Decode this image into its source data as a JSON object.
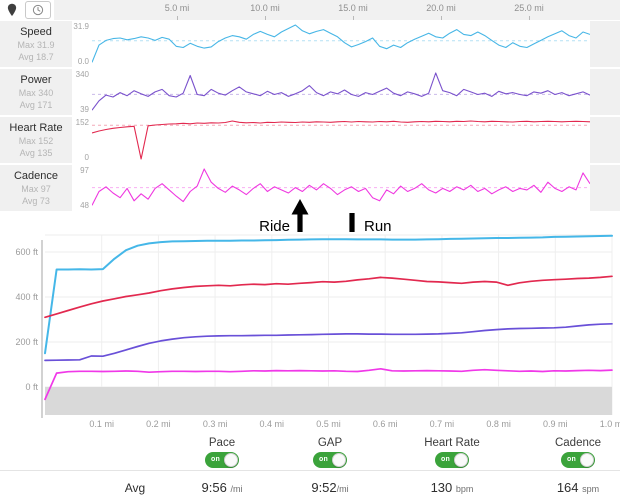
{
  "toolbar": {
    "icons": [
      {
        "name": "map-pin"
      },
      {
        "name": "clock"
      }
    ]
  },
  "annotations": {
    "ride_label": "Ride",
    "run_label": "Run"
  },
  "chart_data": {
    "ride": {
      "type": "line",
      "x_unit": "mi",
      "x_range": [
        0,
        28.5
      ],
      "x_ticks": [
        "5.0 mi",
        "10.0 mi",
        "15.0 mi",
        "20.0 mi",
        "25.0 mi"
      ],
      "x_tick_values": [
        5,
        10,
        15,
        20,
        25
      ],
      "streams": [
        {
          "id": "speed",
          "label": "Speed",
          "max_text": "Max 31.9",
          "avg_text": "Avg 18.7",
          "y_max_label": "31.9",
          "y_min_label": "0.0",
          "y_min": 0,
          "y_max": 31.9,
          "avg": 18.7,
          "color": "#47b6e6",
          "values": [
            0.5,
            15,
            19,
            20.5,
            21,
            19.5,
            20.5,
            22,
            21,
            19,
            21.5,
            20,
            14,
            13,
            16.5,
            14,
            12.5,
            13.5,
            18,
            21,
            23,
            22,
            20,
            24,
            26.5,
            24,
            22,
            26,
            29,
            31.9,
            27,
            24.5,
            26.5,
            28,
            25,
            22,
            17,
            13.5,
            15.5,
            18,
            21,
            14,
            12,
            15,
            13,
            17,
            20,
            22.5,
            25,
            22,
            21,
            25,
            28,
            24,
            23,
            26,
            23,
            19,
            15,
            13,
            17,
            14,
            13,
            16,
            19,
            22,
            24.5,
            27,
            23,
            21,
            26,
            24
          ]
        },
        {
          "id": "power",
          "label": "Power",
          "max_text": "Max 340",
          "avg_text": "Avg 171",
          "y_max_label": "340",
          "y_min_label": "39",
          "y_min": 39,
          "y_max": 340,
          "avg": 171,
          "color": "#7a52cc",
          "values": [
            45,
            120,
            165,
            150,
            185,
            160,
            200,
            175,
            155,
            190,
            210,
            160,
            150,
            180,
            320,
            170,
            160,
            210,
            180,
            165,
            200,
            230,
            190,
            175,
            160,
            195,
            170,
            185,
            155,
            175,
            200,
            240,
            185,
            160,
            190,
            175,
            205,
            170,
            155,
            185,
            170,
            195,
            220,
            180,
            160,
            190,
            175,
            155,
            180,
            340,
            200,
            185,
            160,
            210,
            190,
            170,
            180,
            155,
            195,
            175,
            185,
            170,
            160,
            190,
            180,
            200,
            170,
            185,
            160,
            175,
            190,
            165
          ]
        },
        {
          "id": "heart-rate",
          "label": "Heart Rate",
          "max_text": "Max 152",
          "avg_text": "Avg 135",
          "y_max_label": "152",
          "y_min_label": "0",
          "y_min": 0,
          "y_max": 152,
          "avg": 135,
          "color": "#e2294f",
          "values": [
            104,
            112,
            118,
            123,
            126,
            129,
            131,
            0,
            133,
            136,
            138,
            140,
            141,
            143,
            141,
            144,
            143,
            145,
            144,
            146,
            152,
            147,
            145,
            146,
            144,
            147,
            146,
            148,
            147,
            146,
            148,
            147,
            149,
            148,
            147,
            149,
            150,
            148,
            150,
            149,
            148,
            150,
            149,
            151,
            148,
            147,
            149,
            150,
            149,
            151,
            150,
            149,
            151,
            150,
            152,
            150,
            149,
            151,
            150,
            149,
            148,
            150,
            151,
            149,
            150,
            151,
            150,
            149,
            150,
            151,
            150,
            149
          ]
        },
        {
          "id": "cadence",
          "label": "Cadence",
          "max_text": "Max 97",
          "avg_text": "Avg 73",
          "y_max_label": "97",
          "y_min_label": "48",
          "y_min": 48,
          "y_max": 97,
          "avg": 73,
          "color": "#ef38e0",
          "values": [
            50,
            68,
            74,
            66,
            60,
            72,
            56,
            65,
            58,
            72,
            78,
            70,
            62,
            55,
            68,
            75,
            97,
            80,
            72,
            67,
            75,
            70,
            64,
            72,
            78,
            68,
            74,
            70,
            66,
            73,
            68,
            76,
            70,
            78,
            72,
            64,
            70,
            74,
            68,
            72,
            60,
            56,
            70,
            65,
            75,
            68,
            72,
            78,
            70,
            66,
            72,
            68,
            74,
            70,
            76,
            68,
            72,
            65,
            70,
            74,
            68,
            72,
            70,
            76,
            67,
            80,
            72,
            68,
            74,
            70,
            92,
            78
          ]
        }
      ]
    },
    "run": {
      "type": "line",
      "x_unit": "mi",
      "x_range": [
        0,
        1.0
      ],
      "x_ticks": [
        "0.1 mi",
        "0.2 mi",
        "0.3 mi",
        "0.4 mi",
        "0.5 mi",
        "0.6 mi",
        "0.7 mi",
        "0.8 mi",
        "0.9 mi",
        "1.0 mi"
      ],
      "x_tick_values": [
        0.1,
        0.2,
        0.3,
        0.4,
        0.5,
        0.6,
        0.7,
        0.8,
        0.9,
        1.0
      ],
      "y_ticks": [
        "600 ft",
        "400 ft",
        "200 ft",
        "0 ft"
      ],
      "y_tick_values": [
        600,
        400,
        200,
        0
      ],
      "grid": true,
      "elevation_area": {
        "color": "#d9d9d9",
        "value_ft": 0
      },
      "series": [
        {
          "id": "pace",
          "color": "#45b7e8",
          "values_ft": [
            150,
            522,
            522,
            523,
            522,
            524,
            570,
            608,
            628,
            638,
            644,
            647,
            648,
            649,
            650,
            650,
            650,
            651,
            651,
            652,
            653,
            654,
            655,
            656,
            657,
            657,
            657,
            656,
            656,
            656,
            655,
            655,
            655,
            656,
            657,
            658,
            659,
            660,
            661,
            662,
            662,
            663,
            664,
            665,
            667,
            668,
            669,
            670,
            671,
            672
          ]
        },
        {
          "id": "heart-rate",
          "color": "#e2294f",
          "values_ft": [
            310,
            325,
            340,
            355,
            370,
            382,
            392,
            402,
            410,
            418,
            428,
            436,
            442,
            447,
            450,
            452,
            450,
            454,
            457,
            455,
            459,
            457,
            461,
            464,
            468,
            466,
            470,
            476,
            481,
            487,
            484,
            479,
            474,
            469,
            467,
            464,
            461,
            466,
            469,
            466,
            452,
            463,
            470,
            474,
            477,
            479,
            482,
            484,
            487,
            492
          ]
        },
        {
          "id": "gap",
          "color": "#6950d8",
          "values_ft": [
            118,
            119,
            120,
            121,
            138,
            137,
            150,
            165,
            180,
            194,
            205,
            213,
            219,
            223,
            226,
            227,
            228,
            228,
            229,
            230,
            230,
            231,
            232,
            233,
            234,
            235,
            236,
            236,
            235,
            235,
            234,
            234,
            234,
            235,
            236,
            238,
            241,
            246,
            251,
            255,
            258,
            260,
            261,
            262,
            263,
            266,
            271,
            276,
            279,
            281
          ]
        },
        {
          "id": "cadence",
          "color": "#f038e8",
          "values_ft": [
            -55,
            62,
            68,
            70,
            70,
            69,
            70,
            71,
            70,
            66,
            68,
            70,
            70,
            69,
            70,
            70,
            68,
            70,
            72,
            71,
            73,
            72,
            73,
            72,
            71,
            72,
            70,
            69,
            74,
            81,
            72,
            71,
            72,
            73,
            72,
            71,
            70,
            74,
            77,
            74,
            72,
            70,
            71,
            69,
            72,
            71,
            73,
            74,
            73,
            75
          ]
        }
      ]
    }
  },
  "summary": {
    "row_label": "Avg",
    "toggle_on_color": "#3ba33b",
    "metrics": [
      {
        "label": "Pace",
        "toggle": "on",
        "value": "9:56",
        "unit": "/mi"
      },
      {
        "label": "GAP",
        "toggle": "on",
        "value": "9:52",
        "unit": "/mi"
      },
      {
        "label": "Heart Rate",
        "toggle": "on",
        "value": "130",
        "unit": "bpm"
      },
      {
        "label": "Cadence",
        "toggle": "on",
        "value": "164",
        "unit": "spm"
      }
    ]
  }
}
